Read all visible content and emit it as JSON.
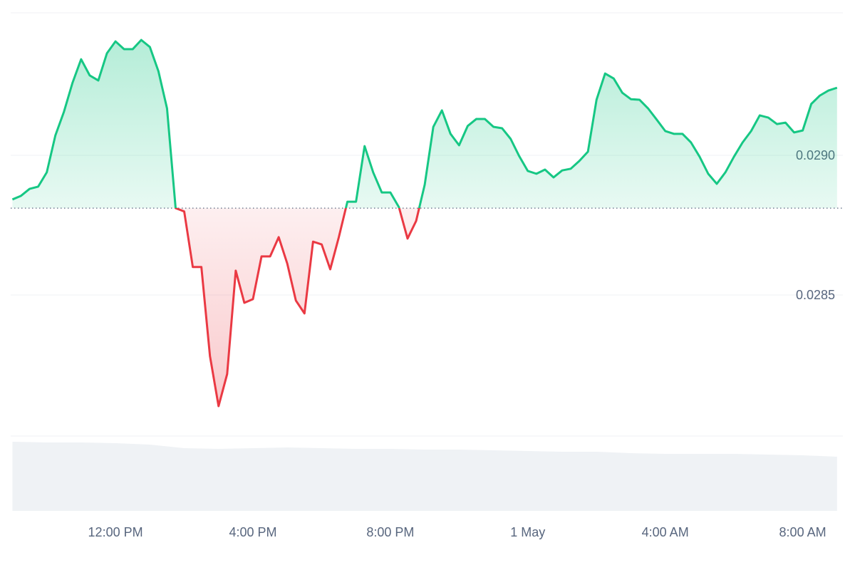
{
  "chart_data": {
    "type": "line",
    "x": [
      -3,
      -2.75,
      -2.5,
      -2.25,
      -2,
      -1.75,
      -1.5,
      -1.25,
      -1,
      -0.75,
      -0.5,
      -0.25,
      0,
      0.25,
      0.5,
      0.75,
      1,
      1.25,
      1.5,
      1.75,
      2,
      2.25,
      2.5,
      2.75,
      3,
      3.25,
      3.5,
      3.75,
      4,
      4.25,
      4.5,
      4.75,
      5,
      5.25,
      5.5,
      5.75,
      6,
      6.25,
      6.5,
      6.75,
      7,
      7.25,
      7.5,
      7.75,
      8,
      8.25,
      8.5,
      8.75,
      9,
      9.25,
      9.5,
      9.75,
      10,
      10.25,
      10.5,
      10.75,
      11,
      11.25,
      11.5,
      11.75,
      12,
      12.25,
      12.5,
      12.75,
      13,
      13.25,
      13.5,
      13.75,
      14,
      14.25,
      14.5,
      14.75,
      15,
      15.25,
      15.5,
      15.75,
      16,
      16.25,
      16.5,
      16.75,
      17,
      17.25,
      17.5,
      17.75,
      18,
      18.25,
      18.5,
      18.75,
      19,
      19.25,
      19.5,
      19.75,
      20,
      20.25,
      20.5,
      20.75,
      21
    ],
    "values": [
      0.028842,
      0.028855,
      0.02888,
      0.028888,
      0.028939,
      0.029071,
      0.029156,
      0.02926,
      0.029344,
      0.029286,
      0.029268,
      0.029365,
      0.029408,
      0.02938,
      0.02938,
      0.029413,
      0.029388,
      0.029301,
      0.029168,
      0.028811,
      0.028799,
      0.0286,
      0.0286,
      0.028281,
      0.028102,
      0.028217,
      0.028587,
      0.028472,
      0.028485,
      0.028638,
      0.028638,
      0.028707,
      0.028612,
      0.02848,
      0.028434,
      0.028691,
      0.028681,
      0.028592,
      0.028707,
      0.028834,
      0.028834,
      0.029033,
      0.028939,
      0.028867,
      0.028867,
      0.028814,
      0.028702,
      0.028765,
      0.028895,
      0.029102,
      0.029161,
      0.029077,
      0.029036,
      0.029105,
      0.02913,
      0.02913,
      0.029102,
      0.029097,
      0.029059,
      0.028997,
      0.028944,
      0.028934,
      0.028949,
      0.028921,
      0.028946,
      0.028952,
      0.02898,
      0.029013,
      0.029199,
      0.029293,
      0.029275,
      0.029224,
      0.029201,
      0.029199,
      0.029168,
      0.029128,
      0.029087,
      0.029077,
      0.029077,
      0.029046,
      0.028995,
      0.028934,
      0.028898,
      0.028939,
      0.028995,
      0.029046,
      0.029087,
      0.029143,
      0.029135,
      0.029112,
      0.029117,
      0.029082,
      0.029089,
      0.029184,
      0.029214,
      0.029232,
      0.029242
    ],
    "baseline": 0.028811,
    "up_color": "#16c784",
    "down_color": "#ea3943",
    "xlim": [
      -3.05,
      21.17
    ],
    "xticks": [
      {
        "value": 0,
        "label": "12:00 PM"
      },
      {
        "value": 4,
        "label": "4:00 PM"
      },
      {
        "value": 8,
        "label": "8:00 PM"
      },
      {
        "value": 12,
        "label": "1 May"
      },
      {
        "value": 16,
        "label": "4:00 AM"
      },
      {
        "value": 20,
        "label": "8:00 AM"
      }
    ],
    "ylim": [
      0.028,
      0.0295
    ],
    "yticks": [
      {
        "value": 0.0285,
        "label": "0.0285"
      },
      {
        "value": 0.029,
        "label": "0.0290"
      }
    ],
    "grid": true,
    "volume": {
      "x": [
        -3,
        -2,
        -1,
        0,
        1,
        2,
        3,
        4,
        5,
        6,
        7,
        8,
        9,
        10,
        11,
        12,
        13,
        14,
        15,
        16,
        17,
        18,
        19,
        20,
        21
      ],
      "values": [
        97,
        96,
        96,
        95,
        93,
        88,
        87,
        88,
        89,
        88,
        87,
        87,
        86,
        86,
        85,
        84,
        83,
        83,
        81,
        80,
        80,
        80,
        79,
        78,
        76
      ],
      "vlim": [
        0,
        100
      ],
      "color": "#eff2f5"
    }
  }
}
